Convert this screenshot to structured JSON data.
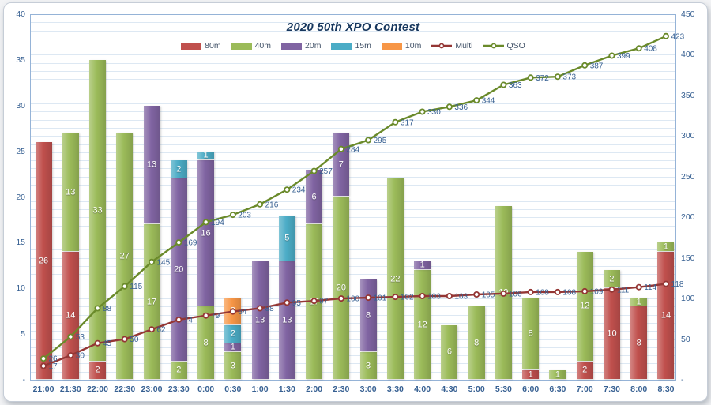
{
  "title": "2020 50th XPO Contest",
  "chart_data": {
    "type": "bar",
    "subtype": "stacked-columns-with-cumulative-lines",
    "title": "2020 50th XPO Contest",
    "categories": [
      "21:00",
      "21:30",
      "22:00",
      "22:30",
      "23:00",
      "23:30",
      "0:00",
      "0:30",
      "1:00",
      "1:30",
      "2:00",
      "2:30",
      "3:00",
      "3:30",
      "4:00",
      "4:30",
      "5:00",
      "5:30",
      "6:00",
      "6:30",
      "7:00",
      "7:30",
      "8:00",
      "8:30"
    ],
    "bar_series": [
      {
        "name": "80m",
        "color": "#c0504d",
        "values": [
          26,
          14,
          2,
          0,
          0,
          0,
          0,
          0,
          0,
          0,
          0,
          0,
          0,
          0,
          0,
          0,
          0,
          0,
          1,
          0,
          2,
          10,
          8,
          14
        ]
      },
      {
        "name": "40m",
        "color": "#9bbb59",
        "values": [
          0,
          13,
          33,
          27,
          17,
          2,
          8,
          3,
          0,
          0,
          17,
          20,
          3,
          22,
          12,
          6,
          8,
          19,
          8,
          1,
          12,
          2,
          1,
          1
        ]
      },
      {
        "name": "20m",
        "color": "#8064a2",
        "values": [
          0,
          0,
          0,
          0,
          13,
          20,
          16,
          1,
          13,
          13,
          6,
          7,
          8,
          0,
          1,
          0,
          0,
          0,
          0,
          0,
          0,
          0,
          0,
          0
        ]
      },
      {
        "name": "15m",
        "color": "#4bacc6",
        "values": [
          0,
          0,
          0,
          0,
          0,
          2,
          1,
          2,
          0,
          5,
          0,
          0,
          0,
          0,
          0,
          0,
          0,
          0,
          0,
          0,
          0,
          0,
          0,
          0
        ]
      },
      {
        "name": "10m",
        "color": "#f79646",
        "values": [
          0,
          0,
          0,
          0,
          0,
          0,
          0,
          3,
          0,
          0,
          0,
          0,
          0,
          0,
          0,
          0,
          0,
          0,
          0,
          0,
          0,
          0,
          0,
          0
        ]
      }
    ],
    "line_series": [
      {
        "name": "Multi",
        "color": "#943634",
        "values": [
          17,
          30,
          45,
          50,
          62,
          74,
          79,
          84,
          88,
          95,
          97,
          100,
          101,
          102,
          103,
          103,
          105,
          106,
          108,
          108,
          109,
          111,
          114,
          118
        ]
      },
      {
        "name": "QSO",
        "color": "#6a8a2a",
        "values": [
          26,
          53,
          88,
          115,
          145,
          169,
          194,
          203,
          216,
          234,
          257,
          284,
          295,
          317,
          330,
          336,
          344,
          363,
          372,
          373,
          387,
          399,
          408,
          423
        ]
      }
    ],
    "left_axis": {
      "min": 0,
      "max": 40,
      "step": 5,
      "tick_labels": [
        "40",
        "35",
        "30",
        "25",
        "20",
        "15",
        "10",
        "5",
        "-"
      ]
    },
    "right_axis": {
      "min": 0,
      "max": 450,
      "step": 50,
      "tick_labels": [
        "450",
        "400",
        "350",
        "300",
        "250",
        "200",
        "150",
        "100",
        "50",
        "-"
      ]
    },
    "grid": {
      "horizontal_every_right_units": 10,
      "vertical": false
    },
    "legend_position": "top-center",
    "label_color": "#376092"
  }
}
